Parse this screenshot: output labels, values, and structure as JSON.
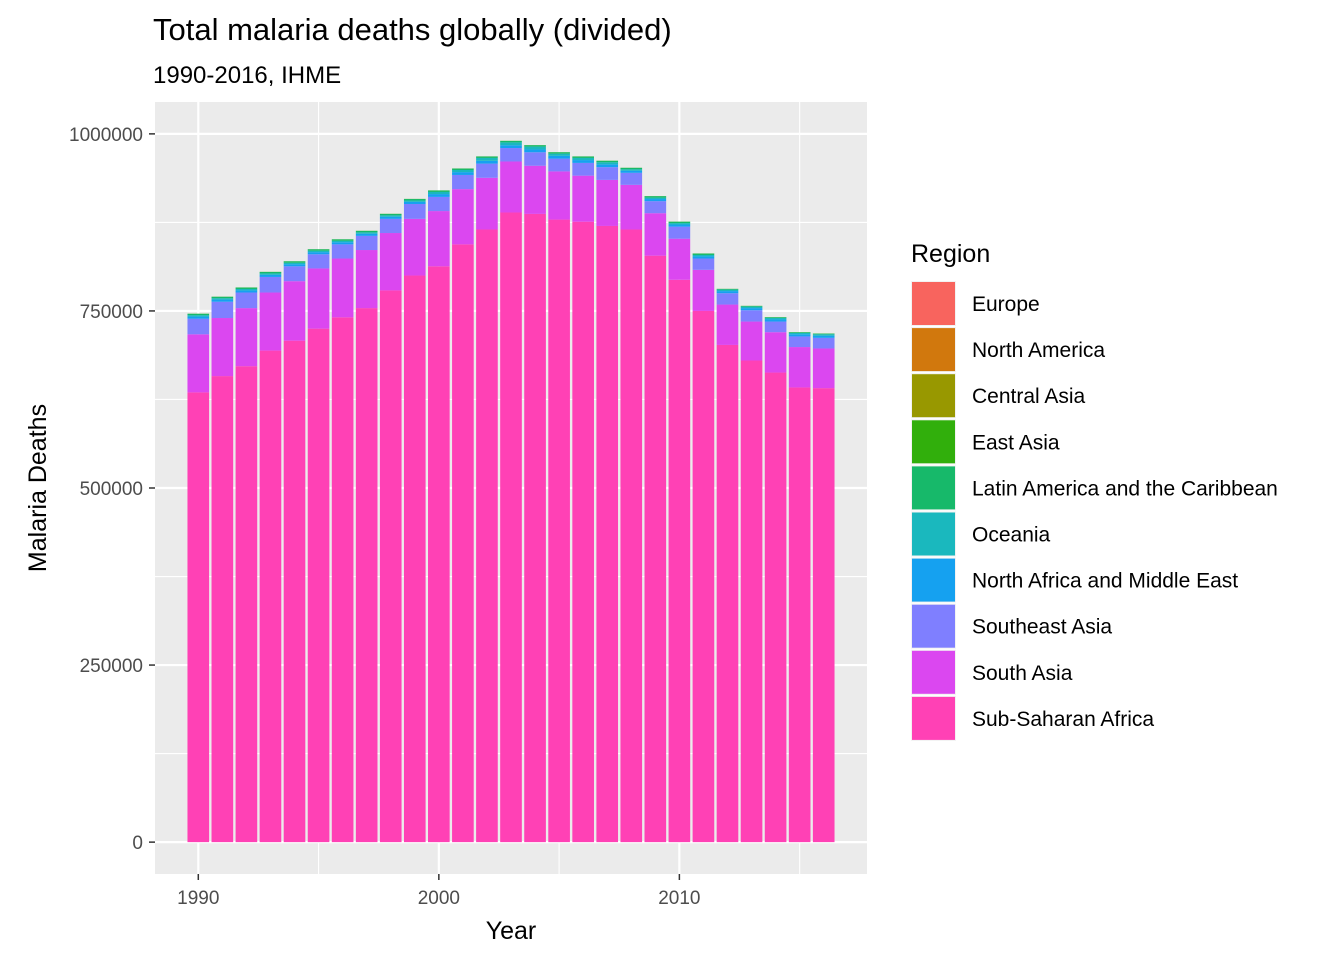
{
  "chart_data": {
    "type": "bar",
    "stacked": true,
    "title": "Total malaria deaths globally (divided)",
    "subtitle": "1990-2016, IHME",
    "xlabel": "Year",
    "ylabel": "Malaria Deaths",
    "xlim": [
      1988.2,
      2017.8
    ],
    "ylim": [
      -45000,
      1045000
    ],
    "x_ticks": [
      1990,
      2000,
      2010
    ],
    "y_ticks": [
      0,
      250000,
      500000,
      750000,
      1000000
    ],
    "y_tick_labels": [
      "0",
      "250000",
      "500000",
      "750000",
      "1000000"
    ],
    "grid": true,
    "legend_position": "right",
    "legend_title": "Region",
    "categories": [
      1990,
      1991,
      1992,
      1993,
      1994,
      1995,
      1996,
      1997,
      1998,
      1999,
      2000,
      2001,
      2002,
      2003,
      2004,
      2005,
      2006,
      2007,
      2008,
      2009,
      2010,
      2011,
      2012,
      2013,
      2014,
      2015,
      2016
    ],
    "series": [
      {
        "name": "Sub-Saharan Africa",
        "color": "#FF41B5",
        "values": [
          635000,
          658000,
          672000,
          694000,
          708000,
          725000,
          741000,
          754000,
          779000,
          800000,
          813000,
          844000,
          865000,
          889000,
          887000,
          879000,
          876000,
          870000,
          865000,
          828000,
          794000,
          750000,
          702000,
          680000,
          663000,
          642000,
          641000
        ]
      },
      {
        "name": "South Asia",
        "color": "#DB47F0",
        "values": [
          82000,
          82000,
          82000,
          82000,
          84000,
          85000,
          83000,
          82000,
          81000,
          80000,
          78000,
          78000,
          73000,
          72000,
          68000,
          68000,
          65000,
          65000,
          63000,
          60000,
          58000,
          58000,
          57000,
          55000,
          57000,
          57000,
          56000
        ]
      },
      {
        "name": "Southeast Asia",
        "color": "#7F7FFF",
        "values": [
          22000,
          23000,
          22000,
          22000,
          21000,
          20000,
          20000,
          20000,
          20000,
          21000,
          20000,
          20000,
          20000,
          19000,
          19000,
          18000,
          18000,
          18000,
          17000,
          17000,
          17000,
          16000,
          16000,
          16000,
          15000,
          15000,
          15000
        ]
      },
      {
        "name": "North Africa and Middle East",
        "color": "#15A1F0",
        "values": [
          3000,
          3000,
          3000,
          3000,
          3000,
          3000,
          3000,
          3000,
          3000,
          3000,
          4000,
          4000,
          4000,
          4000,
          4000,
          4000,
          4000,
          4000,
          3000,
          3000,
          3000,
          3000,
          3000,
          3000,
          3000,
          3000,
          3000
        ]
      },
      {
        "name": "Oceania",
        "color": "#1AB8BE",
        "values": [
          2000,
          2000,
          2000,
          2000,
          2000,
          2000,
          2000,
          2000,
          2000,
          2000,
          3000,
          3000,
          4000,
          4000,
          4000,
          3000,
          3000,
          3000,
          2000,
          2000,
          2000,
          2000,
          2000,
          2000,
          2000,
          2000,
          2000
        ]
      },
      {
        "name": "Latin America and the Caribbean",
        "color": "#17B96A",
        "values": [
          2000,
          2000,
          2000,
          2000,
          2000,
          2000,
          2000,
          2000,
          2000,
          2000,
          2000,
          2000,
          2000,
          2000,
          2000,
          2000,
          2000,
          2000,
          2000,
          2000,
          2000,
          2000,
          1000,
          1000,
          1000,
          1000,
          1000
        ]
      },
      {
        "name": "East Asia",
        "color": "#31AF0C",
        "values": [
          200,
          200,
          200,
          200,
          200,
          200,
          200,
          200,
          200,
          200,
          200,
          200,
          200,
          200,
          200,
          200,
          200,
          200,
          200,
          200,
          200,
          200,
          200,
          200,
          200,
          200,
          200
        ]
      },
      {
        "name": "Central Asia",
        "color": "#989800",
        "values": [
          0,
          0,
          0,
          0,
          0,
          0,
          0,
          0,
          0,
          0,
          0,
          0,
          0,
          0,
          0,
          0,
          0,
          0,
          0,
          0,
          0,
          0,
          0,
          0,
          0,
          0,
          0
        ]
      },
      {
        "name": "North America",
        "color": "#D1780D",
        "values": [
          0,
          0,
          0,
          0,
          0,
          0,
          0,
          0,
          0,
          0,
          0,
          0,
          0,
          0,
          0,
          0,
          0,
          0,
          0,
          0,
          0,
          0,
          0,
          0,
          0,
          0,
          0
        ]
      },
      {
        "name": "Europe",
        "color": "#F8645E",
        "values": [
          0,
          0,
          0,
          0,
          0,
          0,
          0,
          0,
          0,
          0,
          0,
          0,
          0,
          0,
          0,
          0,
          0,
          0,
          0,
          0,
          0,
          0,
          0,
          0,
          0,
          0,
          0
        ]
      }
    ],
    "legend_order": [
      "Europe",
      "North America",
      "Central Asia",
      "East Asia",
      "Latin America and the Caribbean",
      "Oceania",
      "North Africa and Middle East",
      "Southeast Asia",
      "South Asia",
      "Sub-Saharan Africa"
    ]
  }
}
